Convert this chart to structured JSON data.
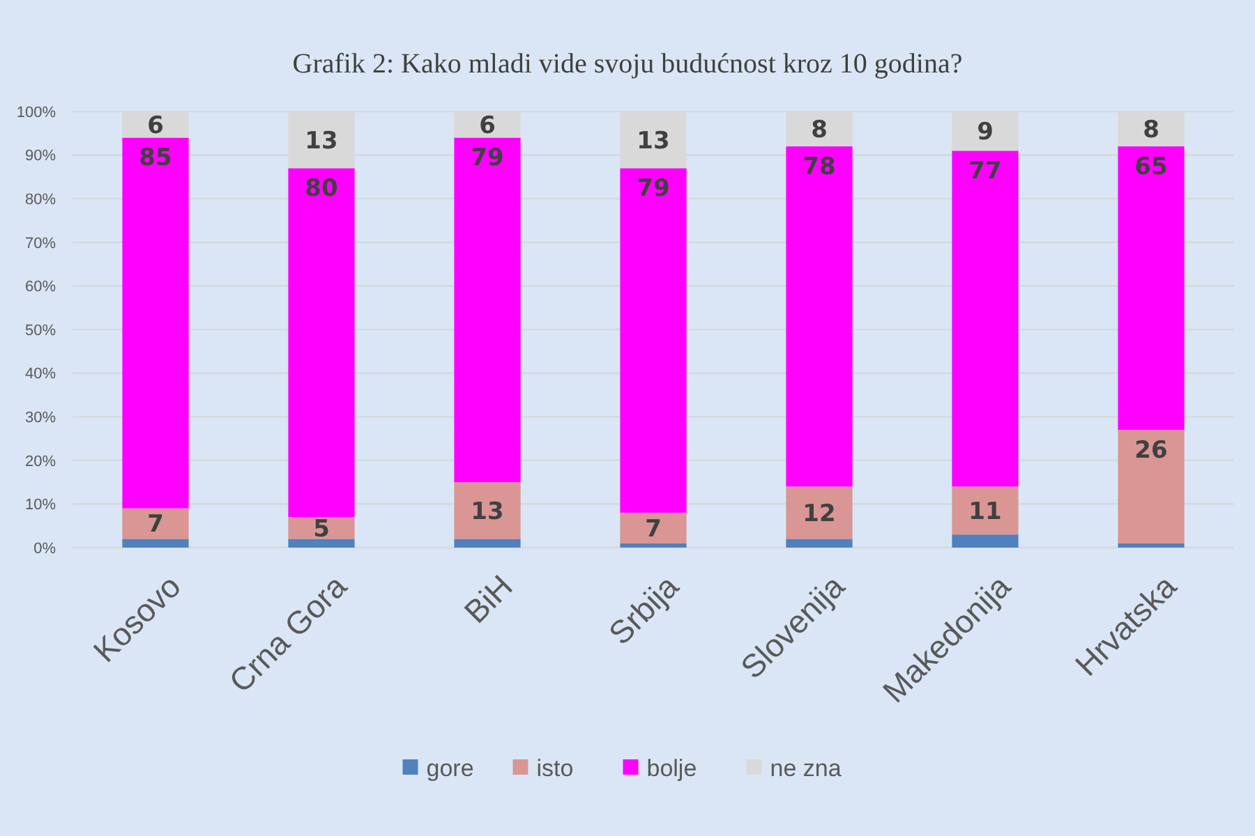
{
  "chart_data": {
    "type": "bar",
    "stacked": true,
    "title": "Grafik 2: Kako mladi vide svoju budućnost kroz 10 godina?",
    "categories": [
      "Kosovo",
      "Crna Gora",
      "BiH",
      "Srbija",
      "Slovenija",
      "Makedonija",
      "Hrvatska"
    ],
    "series": [
      {
        "name": "gore",
        "color": "#4f81bd",
        "values": [
          2,
          2,
          2,
          1,
          2,
          3,
          1
        ]
      },
      {
        "name": "isto",
        "color": "#d99694",
        "values": [
          7,
          5,
          13,
          7,
          12,
          11,
          26
        ],
        "value_labels": [
          "7",
          "5",
          "13",
          "7",
          "12",
          "11",
          "26"
        ]
      },
      {
        "name": "bolje",
        "color": "#ff00ff",
        "values": [
          85,
          80,
          79,
          79,
          78,
          77,
          65
        ],
        "value_labels": [
          "85",
          "80",
          "79",
          "79",
          "78",
          "77",
          "65"
        ]
      },
      {
        "name": "ne zna",
        "color": "#d9d9d9",
        "values": [
          6,
          13,
          6,
          13,
          8,
          9,
          8
        ],
        "value_labels": [
          "6",
          "13",
          "6",
          "13",
          "8",
          "9",
          "8"
        ]
      }
    ],
    "ylim": [
      0,
      100
    ],
    "yticks": [
      {
        "value": 0,
        "label": "0%"
      },
      {
        "value": 10,
        "label": "10%"
      },
      {
        "value": 20,
        "label": "20%"
      },
      {
        "value": 30,
        "label": "30%"
      },
      {
        "value": 40,
        "label": "40%"
      },
      {
        "value": 50,
        "label": "50%"
      },
      {
        "value": 60,
        "label": "60%"
      },
      {
        "value": 70,
        "label": "70%"
      },
      {
        "value": 80,
        "label": "80%"
      },
      {
        "value": 90,
        "label": "90%"
      },
      {
        "value": 100,
        "label": "100%"
      }
    ],
    "grid": "y",
    "legend": "bottom"
  }
}
